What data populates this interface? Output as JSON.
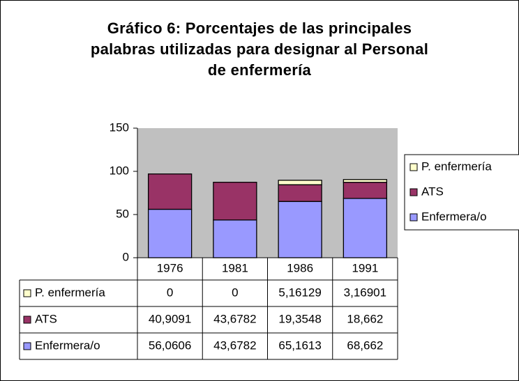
{
  "chart_data": {
    "type": "stacked_bar",
    "title": "Gráfico 6: Porcentajes de las principales palabras utilizadas para designar al Personal de enfermería",
    "categories": [
      "1976",
      "1981",
      "1986",
      "1991"
    ],
    "series": [
      {
        "name": "P. enfermería",
        "color": "#ffffcc",
        "values": [
          0,
          0,
          5.16129,
          3.16901
        ],
        "value_labels": [
          "0",
          "0",
          "5,16129",
          "3,16901"
        ]
      },
      {
        "name": "ATS",
        "color": "#993366",
        "values": [
          40.9091,
          43.6782,
          19.3548,
          18.662
        ],
        "value_labels": [
          "40,9091",
          "43,6782",
          "19,3548",
          "18,662"
        ]
      },
      {
        "name": "Enfermera/o",
        "color": "#9999ff",
        "values": [
          56.0606,
          43.6782,
          65.1613,
          68.662
        ],
        "value_labels": [
          "56,0606",
          "43,6782",
          "65,1613",
          "68,662"
        ]
      }
    ],
    "ylim": [
      0,
      150
    ],
    "yticks": [
      0,
      50,
      100,
      150
    ],
    "grid": false,
    "plot_background": "#c0c0c0",
    "legend": "right"
  }
}
